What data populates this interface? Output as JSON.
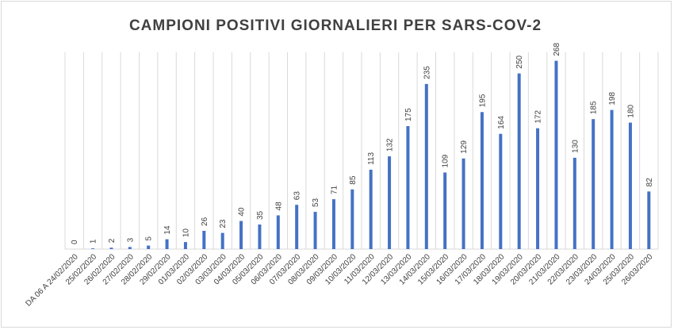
{
  "chart_data": {
    "type": "bar",
    "title": "CAMPIONI POSITIVI GIORNALIERI PER SARS-COV-2",
    "xlabel": "",
    "ylabel": "",
    "categories": [
      "DA 06 A 24/02/2020",
      "25/02/2020",
      "26/02/2020",
      "27/02/2020",
      "28/02/2020",
      "29/02/2020",
      "01/03/2020",
      "02/03/2020",
      "03/03/2020",
      "04/03/2020",
      "05/03/2020",
      "06/03/2020",
      "07/03/2020",
      "08/03/2020",
      "09/03/2020",
      "10/03/2020",
      "11/03/2020",
      "12/03/2020",
      "13/03/2020",
      "14/03/2020",
      "15/03/2020",
      "16/03/2020",
      "17/03/2020",
      "18/03/2020",
      "19/03/2020",
      "20/03/2020",
      "21/03/2020",
      "22/03/2020",
      "23/03/2020",
      "24/03/2020",
      "25/03/2020",
      "26/03/2020"
    ],
    "values": [
      0,
      1,
      2,
      3,
      5,
      14,
      10,
      26,
      23,
      40,
      35,
      48,
      63,
      53,
      71,
      85,
      113,
      132,
      175,
      235,
      109,
      129,
      195,
      164,
      250,
      172,
      268,
      130,
      185,
      198,
      180,
      82
    ],
    "ylim": [
      0,
      280
    ],
    "grid": "vertical",
    "data_labels": true,
    "bar_color": "#4472c4"
  }
}
